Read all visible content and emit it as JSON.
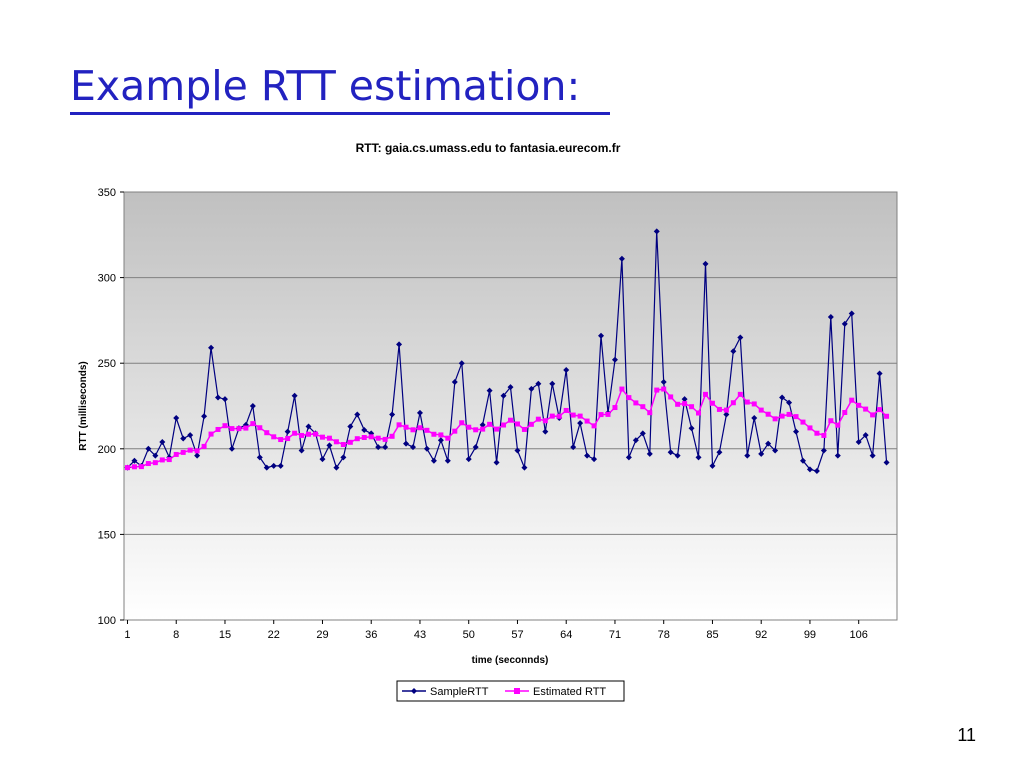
{
  "slide": {
    "title": "Example RTT estimation:",
    "page_number": "11"
  },
  "colors": {
    "title": "#2222c0",
    "sample": "#000080",
    "estimated": "#ff00ff",
    "plot_bg_top": "#c0c0c0",
    "plot_bg_bottom": "#ffffff"
  },
  "chart_data": {
    "type": "line",
    "title": "RTT: gaia.cs.umass.edu to fantasia.eurecom.fr",
    "xlabel": "time (seconnds)",
    "ylabel": "RTT (milliseconds)",
    "ylim": [
      100,
      350
    ],
    "yticks": [
      100,
      150,
      200,
      250,
      300,
      350
    ],
    "xlim": [
      1,
      111
    ],
    "xticks": [
      1,
      8,
      15,
      22,
      29,
      36,
      43,
      50,
      57,
      64,
      71,
      78,
      85,
      92,
      99,
      106
    ],
    "grid": true,
    "legend": "bottom-center",
    "series": [
      {
        "name": "SampleRTT",
        "color": "#000080",
        "marker": "diamond",
        "values": [
          189,
          193,
          190,
          200,
          196,
          204,
          195,
          218,
          206,
          208,
          196,
          219,
          259,
          230,
          229,
          200,
          212,
          214,
          225,
          195,
          189,
          190,
          190,
          210,
          231,
          199,
          213,
          209,
          194,
          202,
          189,
          195,
          213,
          220,
          211,
          209,
          201,
          201,
          220,
          261,
          203,
          201,
          221,
          200,
          193,
          205,
          193,
          239,
          250,
          194,
          201,
          214,
          234,
          192,
          231,
          236,
          199,
          189,
          235,
          238,
          210,
          238,
          218,
          246,
          201,
          215,
          196,
          194,
          266,
          221,
          252,
          311,
          195,
          205,
          209,
          197,
          327,
          239,
          198,
          196,
          229,
          212,
          195,
          308,
          190,
          198,
          220,
          257,
          265,
          196,
          218,
          197,
          203,
          199,
          230,
          227,
          210,
          193,
          188,
          187,
          199,
          277,
          196,
          273,
          279,
          204,
          208,
          196,
          244,
          192
        ]
      },
      {
        "name": "Estimated RTT",
        "color": "#ff00ff",
        "marker": "square",
        "values": [
          189,
          189.5,
          189.6,
          191.4,
          191.9,
          193.5,
          193.7,
          196.7,
          197.9,
          199.2,
          198.8,
          201.4,
          208.6,
          211.3,
          213.5,
          211.8,
          211.8,
          212.1,
          214.7,
          212.3,
          209.4,
          207.0,
          205.4,
          206.0,
          209.1,
          207.8,
          208.5,
          208.6,
          206.8,
          206.2,
          204.1,
          202.5,
          203.8,
          205.9,
          206.6,
          207.0,
          206.2,
          205.5,
          207.3,
          214.0,
          212.6,
          211.1,
          212.3,
          210.8,
          208.5,
          208.1,
          206.2,
          210.3,
          215.2,
          212.6,
          211.1,
          211.5,
          214.3,
          211.5,
          213.9,
          216.7,
          214.5,
          211.3,
          214.3,
          217.3,
          216.4,
          219.1,
          219.0,
          222.4,
          219.7,
          219.1,
          216.2,
          213.4,
          220.0,
          220.1,
          224.1,
          234.9,
          229.9,
          226.8,
          224.6,
          221.1,
          234.3,
          234.9,
          230.3,
          226.0,
          226.4,
          224.6,
          220.9,
          231.8,
          226.6,
          223.0,
          222.6,
          226.9,
          231.8,
          227.3,
          226.2,
          222.6,
          220.2,
          217.5,
          219.1,
          220.1,
          218.8,
          215.6,
          212.2,
          209.1,
          207.8,
          216.4,
          213.8,
          221.2,
          228.4,
          225.4,
          223.2,
          219.8,
          222.9,
          219.0
        ]
      }
    ]
  }
}
